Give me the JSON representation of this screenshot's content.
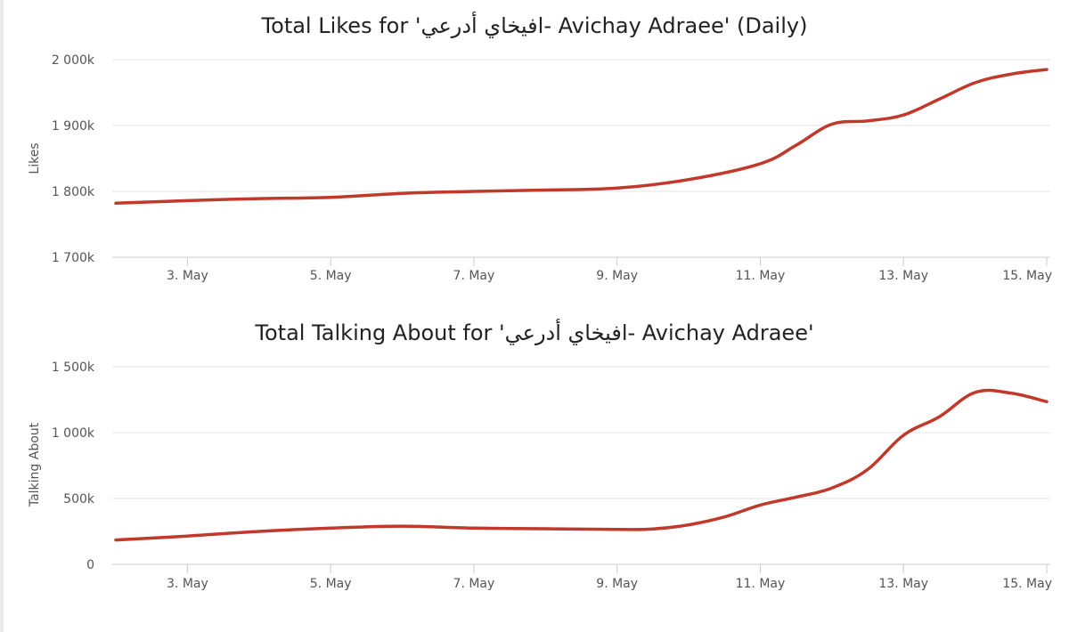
{
  "chart_data": [
    {
      "type": "line",
      "title": "Total Likes for 'افيخاي أدرعي- Avichay Adraee' (Daily)",
      "ylabel": "Likes",
      "xlabel": "",
      "x_tick_labels": [
        "3. May",
        "5. May",
        "7. May",
        "9. May",
        "11. May",
        "13. May",
        "15. May"
      ],
      "x_tick_days": [
        3,
        5,
        7,
        9,
        11,
        13,
        15
      ],
      "xlim": [
        1.95,
        15.05
      ],
      "y_tick_labels": [
        "1 700k",
        "1 800k",
        "1 900k",
        "2 000k"
      ],
      "y_ticks": [
        1700,
        1800,
        1900,
        2000
      ],
      "ylim": [
        1700,
        2000
      ],
      "y_unit": "k",
      "grid": true,
      "color": "#c0392b",
      "x": [
        2,
        3,
        4,
        5,
        6,
        7,
        8,
        9,
        10,
        11,
        11.5,
        12,
        12.5,
        13,
        13.5,
        14,
        14.5,
        15
      ],
      "values": [
        1782,
        1786,
        1789,
        1791,
        1797,
        1800,
        1802,
        1805,
        1818,
        1842,
        1870,
        1902,
        1907,
        1916,
        1940,
        1965,
        1978,
        1985
      ]
    },
    {
      "type": "line",
      "title": "Total Talking About for 'افيخاي أدرعي- Avichay Adraee'",
      "ylabel": "Talking About",
      "xlabel": "",
      "x_tick_labels": [
        "3. May",
        "5. May",
        "7. May",
        "9. May",
        "11. May",
        "13. May",
        "15. May"
      ],
      "x_tick_days": [
        3,
        5,
        7,
        9,
        11,
        13,
        15
      ],
      "xlim": [
        1.95,
        15.05
      ],
      "y_tick_labels": [
        "0",
        "500k",
        "1 000k",
        "1 500k"
      ],
      "y_ticks": [
        0,
        500,
        1000,
        1500
      ],
      "ylim": [
        0,
        1500
      ],
      "y_unit": "k",
      "grid": true,
      "color": "#c0392b",
      "x": [
        2,
        3,
        4,
        5,
        6,
        7,
        8,
        9,
        9.5,
        10,
        10.5,
        11,
        11.5,
        12,
        12.5,
        13,
        13.5,
        14,
        14.5,
        15
      ],
      "values": [
        185,
        215,
        250,
        275,
        290,
        275,
        270,
        265,
        268,
        300,
        360,
        450,
        510,
        580,
        720,
        980,
        1120,
        1305,
        1300,
        1235
      ]
    }
  ]
}
